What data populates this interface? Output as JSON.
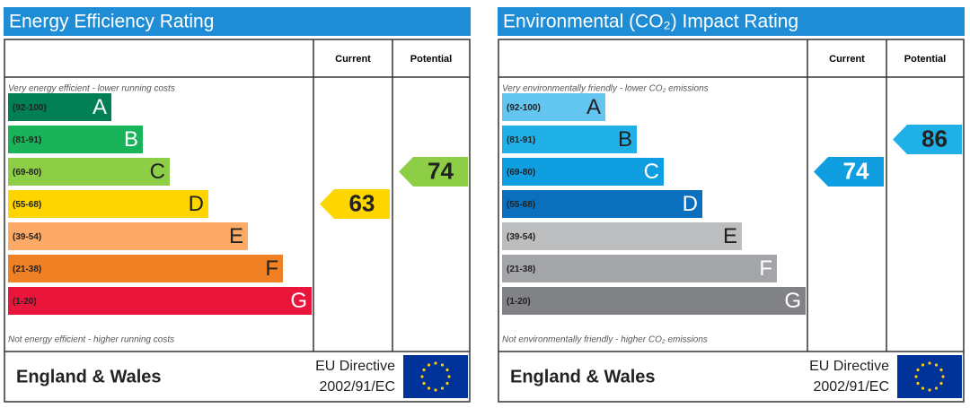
{
  "chart_data": [
    {
      "type": "epc",
      "title": "Energy Efficiency Rating",
      "column_headers": [
        "Current",
        "Potential"
      ],
      "top_caption": "Very energy efficient - lower running costs",
      "bottom_caption": "Not energy efficient - higher running costs",
      "bands": [
        {
          "range": "(92-100)",
          "letter": "A",
          "color": "#008054",
          "text_color": "#ffffff"
        },
        {
          "range": "(81-91)",
          "letter": "B",
          "color": "#19b459",
          "text_color": "#ffffff"
        },
        {
          "range": "(69-80)",
          "letter": "C",
          "color": "#8dce46",
          "text_color": "#222222"
        },
        {
          "range": "(55-68)",
          "letter": "D",
          "color": "#ffd500",
          "text_color": "#222222"
        },
        {
          "range": "(39-54)",
          "letter": "E",
          "color": "#fcaa65",
          "text_color": "#222222"
        },
        {
          "range": "(21-38)",
          "letter": "F",
          "color": "#ef8023",
          "text_color": "#222222"
        },
        {
          "range": "(1-20)",
          "letter": "G",
          "color": "#e9153b",
          "text_color": "#ffffff"
        }
      ],
      "current": 63,
      "potential": 74,
      "footer": {
        "region": "England & Wales",
        "directive_line1": "EU Directive",
        "directive_line2": "2002/91/EC"
      }
    },
    {
      "type": "epc",
      "title": "Environmental (CO₂) Impact Rating",
      "column_headers": [
        "Current",
        "Potential"
      ],
      "top_caption": "Very environmentally friendly - lower CO₂ emissions",
      "bottom_caption": "Not environmentally friendly - higher CO₂ emissions",
      "bands": [
        {
          "range": "(92-100)",
          "letter": "A",
          "color": "#63c6f0",
          "text_color": "#222222"
        },
        {
          "range": "(81-91)",
          "letter": "B",
          "color": "#20b0e8",
          "text_color": "#222222"
        },
        {
          "range": "(69-80)",
          "letter": "C",
          "color": "#0f9ee0",
          "text_color": "#ffffff"
        },
        {
          "range": "(55-68)",
          "letter": "D",
          "color": "#0a6fbd",
          "text_color": "#ffffff"
        },
        {
          "range": "(39-54)",
          "letter": "E",
          "color": "#bbbdbf",
          "text_color": "#222222"
        },
        {
          "range": "(21-38)",
          "letter": "F",
          "color": "#a3a5a8",
          "text_color": "#ffffff"
        },
        {
          "range": "(1-20)",
          "letter": "G",
          "color": "#808285",
          "text_color": "#ffffff"
        }
      ],
      "current": 74,
      "potential": 86,
      "footer": {
        "region": "England & Wales",
        "directive_line1": "EU Directive",
        "directive_line2": "2002/91/EC"
      }
    }
  ]
}
